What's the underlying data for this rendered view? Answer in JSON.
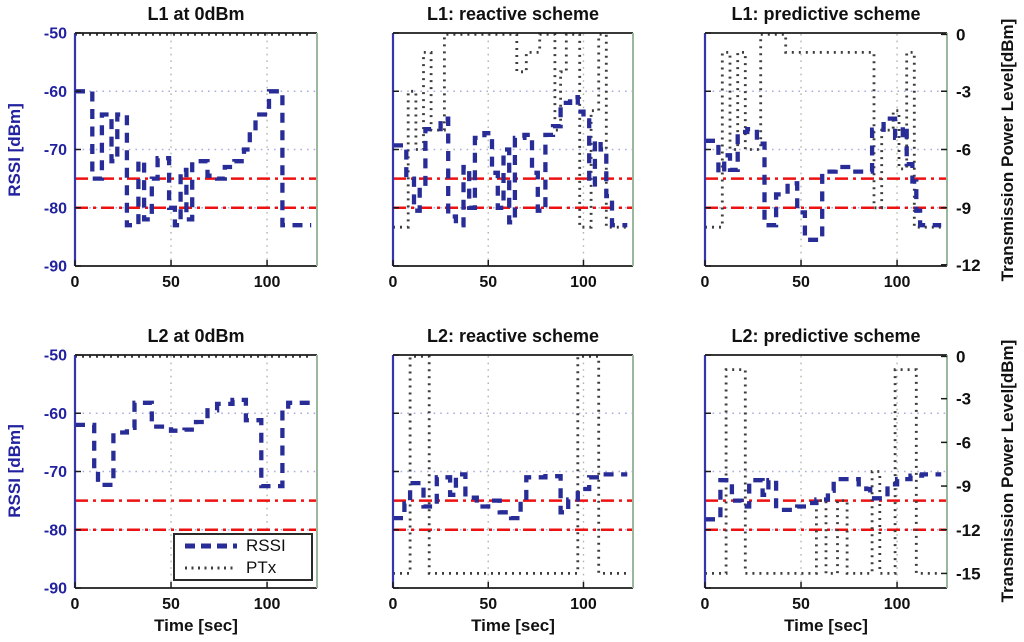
{
  "labels": {
    "left_y": "RSSI [dBm]",
    "right_y": "Transmission Power Level[dBm]",
    "x": "Time [sec]"
  },
  "legend": {
    "rssi": "RSSI",
    "ptx": "PTx"
  },
  "thresholds_rssi": [
    -75,
    -80
  ],
  "colors": {
    "rssi_line": "#282c96",
    "ptx_line": "#3d3d3d",
    "threshold_line": "#ee1111",
    "axis_text_blue": "#2222a0",
    "tick_text_dark": "#111111",
    "grid_horizontal": "#a9b0dd",
    "grid_vertical": "#adb8a8",
    "box_border": "#1b1b1b",
    "spine_left": "#3535ae",
    "spine_right": "#9cb89c"
  },
  "chart_data": [
    {
      "type": "line",
      "title": "L1 at 0dBm",
      "panel": 0,
      "xlim": [
        0,
        126
      ],
      "xticks": [
        0,
        50,
        100
      ],
      "ylim_left": [
        -90,
        -50
      ],
      "yticks_left": [
        -50,
        -60,
        -70,
        -80,
        -90
      ],
      "ylim_right": [
        -12,
        0
      ],
      "yticks_right": [
        0,
        -3,
        -6,
        -9,
        -12
      ],
      "grid_x": [
        50,
        100
      ],
      "grid_y": [
        -60,
        -70,
        -80
      ],
      "show_left_ticklabels": true,
      "show_right_ticklabels": false,
      "series": [
        {
          "name": "RSSI",
          "axis": "left",
          "style": "dashed",
          "points": [
            [
              0,
              -60
            ],
            [
              9,
              -75
            ],
            [
              14,
              -64
            ],
            [
              19,
              -72
            ],
            [
              22,
              -64
            ],
            [
              27,
              -83
            ],
            [
              33,
              -72
            ],
            [
              36,
              -82
            ],
            [
              40,
              -75
            ],
            [
              43,
              -71.5
            ],
            [
              49,
              -80
            ],
            [
              52,
              -83
            ],
            [
              55,
              -73.5
            ],
            [
              58,
              -82
            ],
            [
              61,
              -72
            ],
            [
              69,
              -74.5
            ],
            [
              74,
              -75
            ],
            [
              78,
              -73
            ],
            [
              83,
              -72
            ],
            [
              88,
              -70
            ],
            [
              91,
              -67
            ],
            [
              94,
              -64
            ],
            [
              101,
              -60
            ],
            [
              108,
              -83
            ],
            [
              123,
              -83
            ]
          ]
        },
        {
          "name": "PTx",
          "axis": "right",
          "style": "dotted",
          "points": [
            [
              0,
              0
            ],
            [
              123,
              0
            ]
          ]
        }
      ]
    },
    {
      "type": "line",
      "title": "L1: reactive scheme",
      "panel": 1,
      "xlim": [
        0,
        126
      ],
      "xticks": [
        0,
        50,
        100
      ],
      "ylim_left": [
        -90,
        -50
      ],
      "yticks_left": [
        -50,
        -60,
        -70,
        -80,
        -90
      ],
      "ylim_right": [
        -12,
        0
      ],
      "yticks_right": [
        0,
        -3,
        -6,
        -9,
        -12
      ],
      "grid_x": [
        50,
        100
      ],
      "grid_y": [
        -60,
        -70,
        -80
      ],
      "show_left_ticklabels": false,
      "show_right_ticklabels": false,
      "series": [
        {
          "name": "RSSI",
          "axis": "left",
          "style": "dashed",
          "points": [
            [
              0,
              -69.3
            ],
            [
              7,
              -75
            ],
            [
              11,
              -80.5
            ],
            [
              14,
              -76.5
            ],
            [
              17,
              -66.5
            ],
            [
              25,
              -64.7
            ],
            [
              29,
              -81.5
            ],
            [
              33,
              -83
            ],
            [
              37,
              -73
            ],
            [
              40,
              -80
            ],
            [
              43,
              -68
            ],
            [
              48,
              -67.2
            ],
            [
              52,
              -74
            ],
            [
              55,
              -80
            ],
            [
              58,
              -70
            ],
            [
              61,
              -82.5
            ],
            [
              64,
              -68
            ],
            [
              69,
              -67.5
            ],
            [
              73,
              -74
            ],
            [
              76,
              -80.5
            ],
            [
              80,
              -67.5
            ],
            [
              84,
              -66
            ],
            [
              88,
              -62
            ],
            [
              93,
              -61
            ],
            [
              97,
              -63.5
            ],
            [
              100,
              -65
            ],
            [
              103,
              -76
            ],
            [
              106,
              -68.5
            ],
            [
              109,
              -70
            ],
            [
              112,
              -78
            ],
            [
              115,
              -83
            ],
            [
              123,
              -83
            ]
          ]
        },
        {
          "name": "PTx",
          "axis": "right",
          "style": "dotted",
          "points": [
            [
              0,
              -10
            ],
            [
              8,
              -3
            ],
            [
              12,
              -6
            ],
            [
              16,
              -1
            ],
            [
              20,
              -5
            ],
            [
              27,
              0
            ],
            [
              65,
              -2
            ],
            [
              70,
              -1
            ],
            [
              77,
              0
            ],
            [
              85,
              -5
            ],
            [
              88,
              -2
            ],
            [
              91,
              0
            ],
            [
              98,
              -10
            ],
            [
              104,
              -4
            ],
            [
              108,
              0
            ],
            [
              112,
              -10
            ],
            [
              123,
              -10
            ]
          ]
        }
      ]
    },
    {
      "type": "line",
      "title": "L1: predictive scheme",
      "panel": 2,
      "xlim": [
        0,
        126
      ],
      "xticks": [
        0,
        50,
        100
      ],
      "ylim_left": [
        -90,
        -50
      ],
      "yticks_left": [
        -50,
        -60,
        -70,
        -80,
        -90
      ],
      "ylim_right": [
        -12,
        0
      ],
      "yticks_right": [
        0,
        -3,
        -6,
        -9,
        -12
      ],
      "grid_x": [
        50,
        100
      ],
      "grid_y": [
        -60,
        -70,
        -80
      ],
      "show_left_ticklabels": false,
      "show_right_ticklabels": true,
      "series": [
        {
          "name": "RSSI",
          "axis": "left",
          "style": "dashed",
          "points": [
            [
              0,
              -68.5
            ],
            [
              7,
              -74
            ],
            [
              10,
              -71
            ],
            [
              13,
              -73.5
            ],
            [
              17,
              -67
            ],
            [
              22,
              -66.5
            ],
            [
              27,
              -69
            ],
            [
              31,
              -83
            ],
            [
              37,
              -77.7
            ],
            [
              43,
              -75.8
            ],
            [
              48,
              -80.8
            ],
            [
              52,
              -85.5
            ],
            [
              61,
              -73.8
            ],
            [
              68,
              -73
            ],
            [
              76,
              -73.8
            ],
            [
              82,
              -73.8
            ],
            [
              87,
              -66.6
            ],
            [
              93,
              -64.7
            ],
            [
              99,
              -68
            ],
            [
              103,
              -66
            ],
            [
              105,
              -72.5
            ],
            [
              108,
              -75.5
            ],
            [
              110,
              -80.5
            ],
            [
              112,
              -83
            ],
            [
              123,
              -83
            ]
          ]
        },
        {
          "name": "PTx",
          "axis": "right",
          "style": "dotted",
          "points": [
            [
              0,
              -10
            ],
            [
              9,
              -1
            ],
            [
              13,
              -6
            ],
            [
              17,
              -1
            ],
            [
              21,
              -6
            ],
            [
              29,
              0
            ],
            [
              42,
              -1
            ],
            [
              88,
              -9
            ],
            [
              92,
              -5
            ],
            [
              98,
              -4
            ],
            [
              101,
              -7
            ],
            [
              105,
              -1
            ],
            [
              109,
              -10
            ],
            [
              123,
              -10
            ]
          ]
        }
      ]
    },
    {
      "type": "line",
      "title": "L2 at 0dBm",
      "panel": 3,
      "xlim": [
        0,
        126
      ],
      "xticks": [
        0,
        50,
        100
      ],
      "ylim_left": [
        -90,
        -50
      ],
      "yticks_left": [
        -50,
        -60,
        -70,
        -80,
        -90
      ],
      "ylim_right": [
        -16,
        0
      ],
      "yticks_right": [
        0,
        -3,
        -6,
        -9,
        -12,
        -15
      ],
      "grid_x": [
        50,
        100
      ],
      "grid_y": [
        -60,
        -70,
        -80
      ],
      "show_left_ticklabels": true,
      "show_right_ticklabels": false,
      "series": [
        {
          "name": "RSSI",
          "axis": "left",
          "style": "dashed",
          "points": [
            [
              0,
              -62
            ],
            [
              10,
              -70
            ],
            [
              12,
              -72.3
            ],
            [
              20,
              -63.3
            ],
            [
              27,
              -62.5
            ],
            [
              31,
              -58.2
            ],
            [
              40,
              -62.3
            ],
            [
              50,
              -63
            ],
            [
              57,
              -62.8
            ],
            [
              63,
              -61.5
            ],
            [
              69,
              -59.5
            ],
            [
              74,
              -58.4
            ],
            [
              82,
              -57.7
            ],
            [
              89,
              -61.2
            ],
            [
              97,
              -72.5
            ],
            [
              108,
              -59.5
            ],
            [
              111,
              -58.2
            ],
            [
              123,
              -58.2
            ]
          ]
        },
        {
          "name": "PTx",
          "axis": "right",
          "style": "dotted",
          "points": [
            [
              0,
              0
            ],
            [
              123,
              0
            ]
          ]
        }
      ]
    },
    {
      "type": "line",
      "title": "L2: reactive scheme",
      "panel": 4,
      "xlim": [
        0,
        126
      ],
      "xticks": [
        0,
        50,
        100
      ],
      "ylim_left": [
        -90,
        -50
      ],
      "yticks_left": [
        -50,
        -60,
        -70,
        -80,
        -90
      ],
      "ylim_right": [
        -16,
        0
      ],
      "yticks_right": [
        0,
        -3,
        -6,
        -9,
        -12,
        -15
      ],
      "grid_x": [
        50,
        100
      ],
      "grid_y": [
        -60,
        -70,
        -80
      ],
      "show_left_ticklabels": false,
      "show_right_ticklabels": false,
      "series": [
        {
          "name": "RSSI",
          "axis": "left",
          "style": "dashed",
          "points": [
            [
              0,
              -78
            ],
            [
              6,
              -75.5
            ],
            [
              9,
              -72
            ],
            [
              16,
              -76
            ],
            [
              23,
              -71
            ],
            [
              30,
              -74
            ],
            [
              33,
              -70.5
            ],
            [
              38,
              -74.5
            ],
            [
              44,
              -76
            ],
            [
              50,
              -75
            ],
            [
              56,
              -77
            ],
            [
              62,
              -78
            ],
            [
              67,
              -75
            ],
            [
              70,
              -71
            ],
            [
              80,
              -70.8
            ],
            [
              88,
              -77
            ],
            [
              92,
              -74.8
            ],
            [
              97,
              -73
            ],
            [
              103,
              -71
            ],
            [
              110,
              -70.5
            ],
            [
              123,
              -70.5
            ]
          ]
        },
        {
          "name": "PTx",
          "axis": "right",
          "style": "dotted",
          "points": [
            [
              0,
              -15
            ],
            [
              9,
              0
            ],
            [
              19,
              -15
            ],
            [
              97,
              0
            ],
            [
              108,
              -15
            ],
            [
              123,
              -15
            ]
          ]
        }
      ]
    },
    {
      "type": "line",
      "title": "L2: predictive scheme",
      "panel": 5,
      "xlim": [
        0,
        126
      ],
      "xticks": [
        0,
        50,
        100
      ],
      "ylim_left": [
        -90,
        -50
      ],
      "yticks_left": [
        -50,
        -60,
        -70,
        -80,
        -90
      ],
      "ylim_right": [
        -16,
        0
      ],
      "yticks_right": [
        0,
        -3,
        -6,
        -9,
        -12,
        -15
      ],
      "grid_x": [
        50,
        100
      ],
      "grid_y": [
        -60,
        -70,
        -80
      ],
      "show_left_ticklabels": false,
      "show_right_ticklabels": true,
      "series": [
        {
          "name": "RSSI",
          "axis": "left",
          "style": "dashed",
          "points": [
            [
              0,
              -78.2
            ],
            [
              8,
              -71.5
            ],
            [
              14,
              -75
            ],
            [
              19,
              -76
            ],
            [
              23,
              -71.5
            ],
            [
              30,
              -74
            ],
            [
              33,
              -71.5
            ],
            [
              37,
              -76.6
            ],
            [
              48,
              -76
            ],
            [
              54,
              -75.4
            ],
            [
              58,
              -74.8
            ],
            [
              64,
              -73.3
            ],
            [
              67,
              -71.3
            ],
            [
              80,
              -72.2
            ],
            [
              84,
              -73
            ],
            [
              86,
              -74.6
            ],
            [
              95,
              -72.2
            ],
            [
              100,
              -71.3
            ],
            [
              107,
              -70.7
            ],
            [
              113,
              -70.5
            ],
            [
              123,
              -70.5
            ]
          ]
        },
        {
          "name": "PTx",
          "axis": "right",
          "style": "dotted",
          "points": [
            [
              0,
              -15
            ],
            [
              11,
              -1
            ],
            [
              21,
              -15
            ],
            [
              58,
              -10
            ],
            [
              63,
              -15
            ],
            [
              69,
              -10
            ],
            [
              74,
              -15
            ],
            [
              87,
              -8
            ],
            [
              91,
              -15
            ],
            [
              99,
              -1
            ],
            [
              110,
              -15
            ],
            [
              123,
              -15
            ]
          ]
        }
      ]
    }
  ]
}
